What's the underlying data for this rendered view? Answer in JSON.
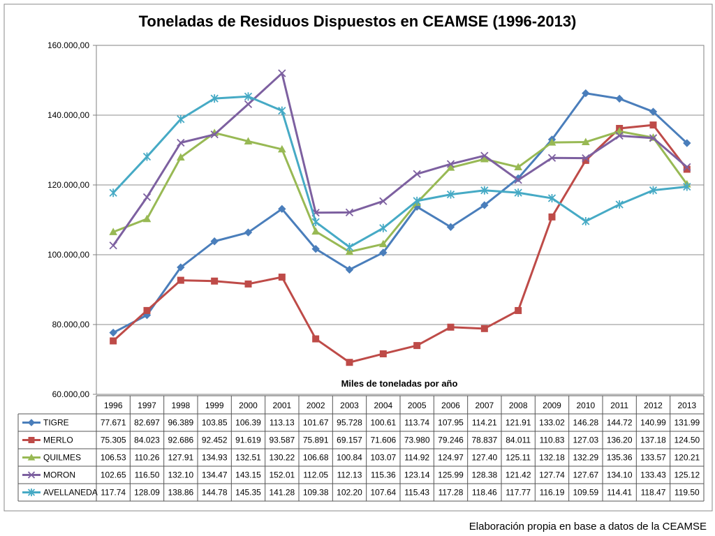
{
  "chart_data": {
    "type": "line",
    "title": "Toneladas de Residuos Dispuestos en CEAMSE (1996-2013)",
    "xlabel": "Miles de toneladas por año",
    "ylabel": "",
    "ylim": [
      60000,
      160000
    ],
    "yticks": [
      "60.000,00",
      "80.000,00",
      "100.000,00",
      "120.000,00",
      "140.000,00",
      "160.000,00"
    ],
    "grid": "horizontal",
    "legend": "data-table-below",
    "categories": [
      "1996",
      "1997",
      "1998",
      "1999",
      "2000",
      "2001",
      "2002",
      "2003",
      "2004",
      "2005",
      "2006",
      "2007",
      "2008",
      "2009",
      "2010",
      "2011",
      "2012",
      "2013"
    ],
    "series": [
      {
        "name": "TIGRE",
        "color": "#4a7ebb",
        "marker": "diamond",
        "values": [
          77671,
          82697,
          96389,
          103850,
          106390,
          113130,
          101670,
          95728,
          100610,
          113740,
          107950,
          114210,
          121910,
          133020,
          146280,
          144720,
          140990,
          131990
        ],
        "labels": [
          "77.671",
          "82.697",
          "96.389",
          "103.85",
          "106.39",
          "113.13",
          "101.67",
          "95.728",
          "100.61",
          "113.74",
          "107.95",
          "114.21",
          "121.91",
          "133.02",
          "146.28",
          "144.72",
          "140.99",
          "131.99"
        ]
      },
      {
        "name": "MERLO",
        "color": "#be4b48",
        "marker": "square",
        "values": [
          75305,
          84023,
          92686,
          92452,
          91619,
          93587,
          75891,
          69157,
          71606,
          73980,
          79246,
          78837,
          84011,
          110830,
          127030,
          136200,
          137180,
          124500
        ],
        "labels": [
          "75.305",
          "84.023",
          "92.686",
          "92.452",
          "91.619",
          "93.587",
          "75.891",
          "69.157",
          "71.606",
          "73.980",
          "79.246",
          "78.837",
          "84.011",
          "110.83",
          "127.03",
          "136.20",
          "137.18",
          "124.50"
        ]
      },
      {
        "name": "QUILMES",
        "color": "#98b954",
        "marker": "triangle",
        "values": [
          106530,
          110260,
          127910,
          134930,
          132510,
          130220,
          106680,
          100840,
          103070,
          114920,
          124970,
          127400,
          125110,
          132180,
          132290,
          135360,
          133570,
          120210
        ],
        "labels": [
          "106.53",
          "110.26",
          "127.91",
          "134.93",
          "132.51",
          "130.22",
          "106.68",
          "100.84",
          "103.07",
          "114.92",
          "124.97",
          "127.40",
          "125.11",
          "132.18",
          "132.29",
          "135.36",
          "133.57",
          "120.21"
        ]
      },
      {
        "name": "MORON",
        "color": "#7d60a0",
        "marker": "x",
        "values": [
          102650,
          116500,
          132100,
          134470,
          143150,
          152010,
          112050,
          112130,
          115360,
          123140,
          125990,
          128380,
          121420,
          127740,
          127670,
          134100,
          133430,
          125120
        ],
        "labels": [
          "102.65",
          "116.50",
          "132.10",
          "134.47",
          "143.15",
          "152.01",
          "112.05",
          "112.13",
          "115.36",
          "123.14",
          "125.99",
          "128.38",
          "121.42",
          "127.74",
          "127.67",
          "134.10",
          "133.43",
          "125.12"
        ]
      },
      {
        "name": "AVELLANEDA",
        "color": "#46aac5",
        "marker": "star",
        "values": [
          117740,
          128090,
          138860,
          144780,
          145350,
          141280,
          109380,
          102200,
          107640,
          115430,
          117280,
          118460,
          117770,
          116190,
          109590,
          114410,
          118470,
          119500
        ],
        "labels": [
          "117.74",
          "128.09",
          "138.86",
          "144.78",
          "145.35",
          "141.28",
          "109.38",
          "102.20",
          "107.64",
          "115.43",
          "117.28",
          "118.46",
          "117.77",
          "116.19",
          "109.59",
          "114.41",
          "118.47",
          "119.50"
        ]
      }
    ],
    "source_note": "Elaboración propia en base a datos de la CEAMSE"
  }
}
